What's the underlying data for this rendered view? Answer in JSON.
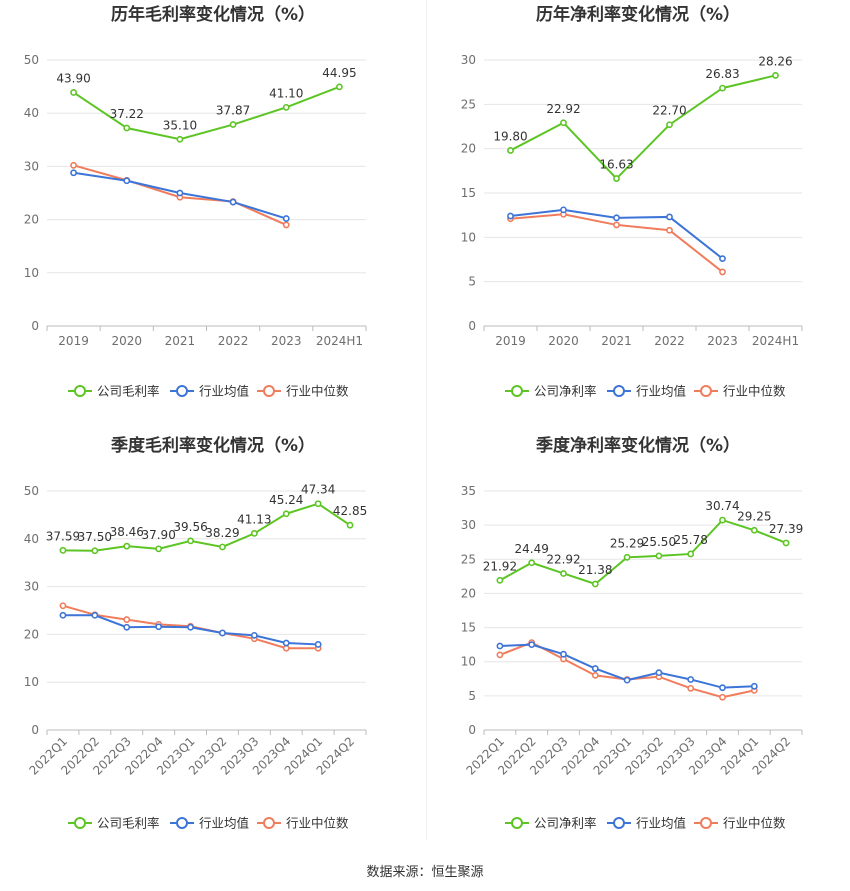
{
  "source": "数据来源：恒生聚源",
  "colors": {
    "company": "#5cc524",
    "avg": "#3c74d8",
    "median": "#f07c5c",
    "grid": "#e6e6e6",
    "axis": "#6e6e6e"
  },
  "chart_data": [
    {
      "type": "line",
      "title": "历年毛利率变化情况（%）",
      "categories": [
        "2019",
        "2020",
        "2021",
        "2022",
        "2023",
        "2024H1"
      ],
      "ylim": [
        0,
        50
      ],
      "yticks": [
        0,
        10,
        20,
        30,
        40,
        50
      ],
      "grid": true,
      "legend_position": "bottom",
      "series": [
        {
          "name": "公司毛利率",
          "values": [
            43.9,
            37.22,
            35.1,
            37.87,
            41.1,
            44.95
          ],
          "labels": [
            "43.90",
            "37.22",
            "35.10",
            "37.87",
            "41.10",
            "44.95"
          ]
        },
        {
          "name": "行业均值",
          "values": [
            28.8,
            27.3,
            25.0,
            23.3,
            20.2,
            null
          ]
        },
        {
          "name": "行业中位数",
          "values": [
            30.2,
            27.4,
            24.2,
            23.4,
            19.0,
            null
          ]
        }
      ]
    },
    {
      "type": "line",
      "title": "历年净利率变化情况（%）",
      "categories": [
        "2019",
        "2020",
        "2021",
        "2022",
        "2023",
        "2024H1"
      ],
      "ylim": [
        0,
        30
      ],
      "yticks": [
        0,
        5,
        10,
        15,
        20,
        25,
        30
      ],
      "grid": true,
      "legend_position": "bottom",
      "series": [
        {
          "name": "公司净利率",
          "values": [
            19.8,
            22.92,
            16.63,
            22.7,
            26.83,
            28.26
          ],
          "labels": [
            "19.80",
            "22.92",
            "16.63",
            "22.70",
            "26.83",
            "28.26"
          ]
        },
        {
          "name": "行业均值",
          "values": [
            12.4,
            13.1,
            12.2,
            12.3,
            7.6,
            null
          ]
        },
        {
          "name": "行业中位数",
          "values": [
            12.1,
            12.6,
            11.4,
            10.8,
            6.1,
            null
          ]
        }
      ]
    },
    {
      "type": "line",
      "title": "季度毛利率变化情况（%）",
      "categories": [
        "2022Q1",
        "2022Q2",
        "2022Q3",
        "2022Q4",
        "2023Q1",
        "2023Q2",
        "2023Q3",
        "2023Q4",
        "2024Q1",
        "2024Q2"
      ],
      "ylim": [
        0,
        50
      ],
      "yticks": [
        0,
        10,
        20,
        30,
        40,
        50
      ],
      "grid": true,
      "legend_position": "bottom",
      "series": [
        {
          "name": "公司毛利率",
          "values": [
            37.59,
            37.5,
            38.46,
            37.9,
            39.56,
            38.29,
            41.13,
            45.24,
            47.34,
            42.85
          ],
          "labels": [
            "37.59",
            "37.50",
            "38.46",
            "37.90",
            "39.56",
            "38.29",
            "41.13",
            "45.24",
            "47.34",
            "42.85"
          ]
        },
        {
          "name": "行业均值",
          "values": [
            24.0,
            24.0,
            21.5,
            21.6,
            21.5,
            20.3,
            19.8,
            18.2,
            17.9,
            null
          ]
        },
        {
          "name": "行业中位数",
          "values": [
            26.0,
            24.1,
            23.1,
            22.1,
            21.7,
            20.3,
            19.1,
            17.1,
            17.1,
            null
          ]
        }
      ]
    },
    {
      "type": "line",
      "title": "季度净利率变化情况（%）",
      "categories": [
        "2022Q1",
        "2022Q2",
        "2022Q3",
        "2022Q4",
        "2023Q1",
        "2023Q2",
        "2023Q3",
        "2023Q4",
        "2024Q1",
        "2024Q2"
      ],
      "ylim": [
        0,
        35
      ],
      "yticks": [
        0,
        5,
        10,
        15,
        20,
        25,
        30,
        35
      ],
      "grid": true,
      "legend_position": "bottom",
      "series": [
        {
          "name": "公司净利率",
          "values": [
            21.92,
            24.49,
            22.92,
            21.38,
            25.29,
            25.5,
            25.78,
            30.74,
            29.25,
            27.39
          ],
          "labels": [
            "21.92",
            "24.49",
            "22.92",
            "21.38",
            "25.29",
            "25.50",
            "25.78",
            "30.74",
            "29.25",
            "27.39"
          ]
        },
        {
          "name": "行业均值",
          "values": [
            12.3,
            12.5,
            11.1,
            9.0,
            7.3,
            8.4,
            7.4,
            6.2,
            6.4,
            null
          ]
        },
        {
          "name": "行业中位数",
          "values": [
            11.0,
            12.8,
            10.4,
            8.0,
            7.4,
            7.8,
            6.1,
            4.8,
            5.8,
            null
          ]
        }
      ]
    }
  ]
}
